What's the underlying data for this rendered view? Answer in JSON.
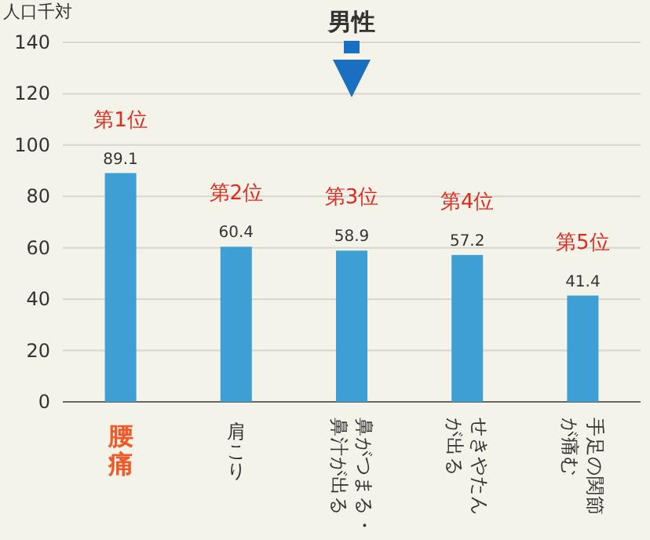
{
  "chart_data": {
    "type": "bar",
    "title": "男性",
    "ylabel": "人口千対",
    "categories": [
      "腰痛",
      "肩こり",
      "鼻がつまる・鼻汁が出る",
      "せきやたんが出る",
      "手足の関節が痛む"
    ],
    "values": [
      89.1,
      60.4,
      58.9,
      57.2,
      41.4
    ],
    "color": "#3d9fd3",
    "data_labels": true,
    "ylim": [
      0,
      140
    ],
    "yticks": [
      0,
      20,
      40,
      60,
      80,
      100,
      120,
      140
    ],
    "grid": "y",
    "annotations": [
      "第1位",
      "第2位",
      "第3位",
      "第4位",
      "第5位"
    ]
  }
}
